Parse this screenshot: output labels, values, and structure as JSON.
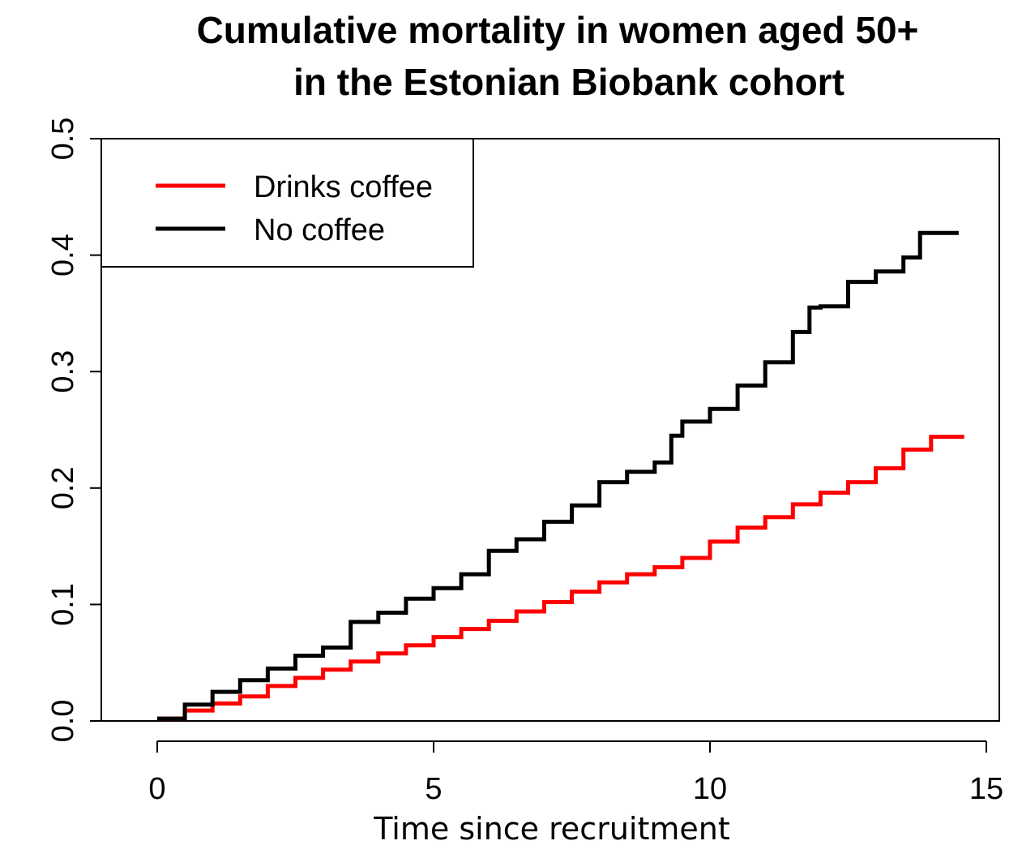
{
  "chart_data": {
    "type": "line",
    "title": [
      "Cumulative mortality in women aged 50+",
      "in the Estonian Biobank cohort"
    ],
    "xlabel": "Time since recruitment",
    "ylabel": "",
    "xlim": [
      0,
      15
    ],
    "ylim": [
      0,
      0.5
    ],
    "xticks": [
      0,
      5,
      10,
      15
    ],
    "yticks": [
      0.0,
      0.1,
      0.2,
      0.3,
      0.4,
      0.5
    ],
    "ytick_labels": [
      "0.0",
      "0.1",
      "0.2",
      "0.3",
      "0.4",
      "0.5"
    ],
    "grid": false,
    "legend_position": "top-left",
    "series": [
      {
        "name": "Drinks coffee",
        "color": "#ff0000",
        "x": [
          0,
          0.5,
          1,
          1.5,
          2,
          2.5,
          3,
          3.5,
          4,
          4.5,
          5,
          5.5,
          6,
          6.5,
          7,
          7.5,
          8,
          8.5,
          9,
          9.5,
          10,
          10.5,
          11,
          11.5,
          12,
          12.5,
          13,
          13.5,
          14,
          14.6
        ],
        "y": [
          0.002,
          0.009,
          0.015,
          0.021,
          0.03,
          0.037,
          0.044,
          0.051,
          0.058,
          0.065,
          0.072,
          0.079,
          0.086,
          0.094,
          0.102,
          0.111,
          0.119,
          0.126,
          0.132,
          0.14,
          0.154,
          0.166,
          0.175,
          0.186,
          0.196,
          0.205,
          0.217,
          0.233,
          0.244,
          0.244
        ]
      },
      {
        "name": "No coffee",
        "color": "#000000",
        "x": [
          0,
          0.5,
          1,
          1.5,
          2,
          2.5,
          3,
          3.5,
          4,
          4.5,
          5,
          5.5,
          6,
          6.5,
          7,
          7.5,
          8,
          8.5,
          9,
          9.3,
          9.5,
          10,
          10.5,
          11,
          11.5,
          11.8,
          12,
          12.5,
          13,
          13.5,
          13.8,
          14,
          14.5
        ],
        "y": [
          0.002,
          0.014,
          0.025,
          0.035,
          0.045,
          0.056,
          0.063,
          0.085,
          0.093,
          0.105,
          0.114,
          0.126,
          0.146,
          0.156,
          0.171,
          0.185,
          0.205,
          0.214,
          0.222,
          0.245,
          0.257,
          0.268,
          0.288,
          0.308,
          0.334,
          0.355,
          0.356,
          0.377,
          0.386,
          0.398,
          0.419,
          0.419,
          0.419
        ]
      }
    ]
  }
}
